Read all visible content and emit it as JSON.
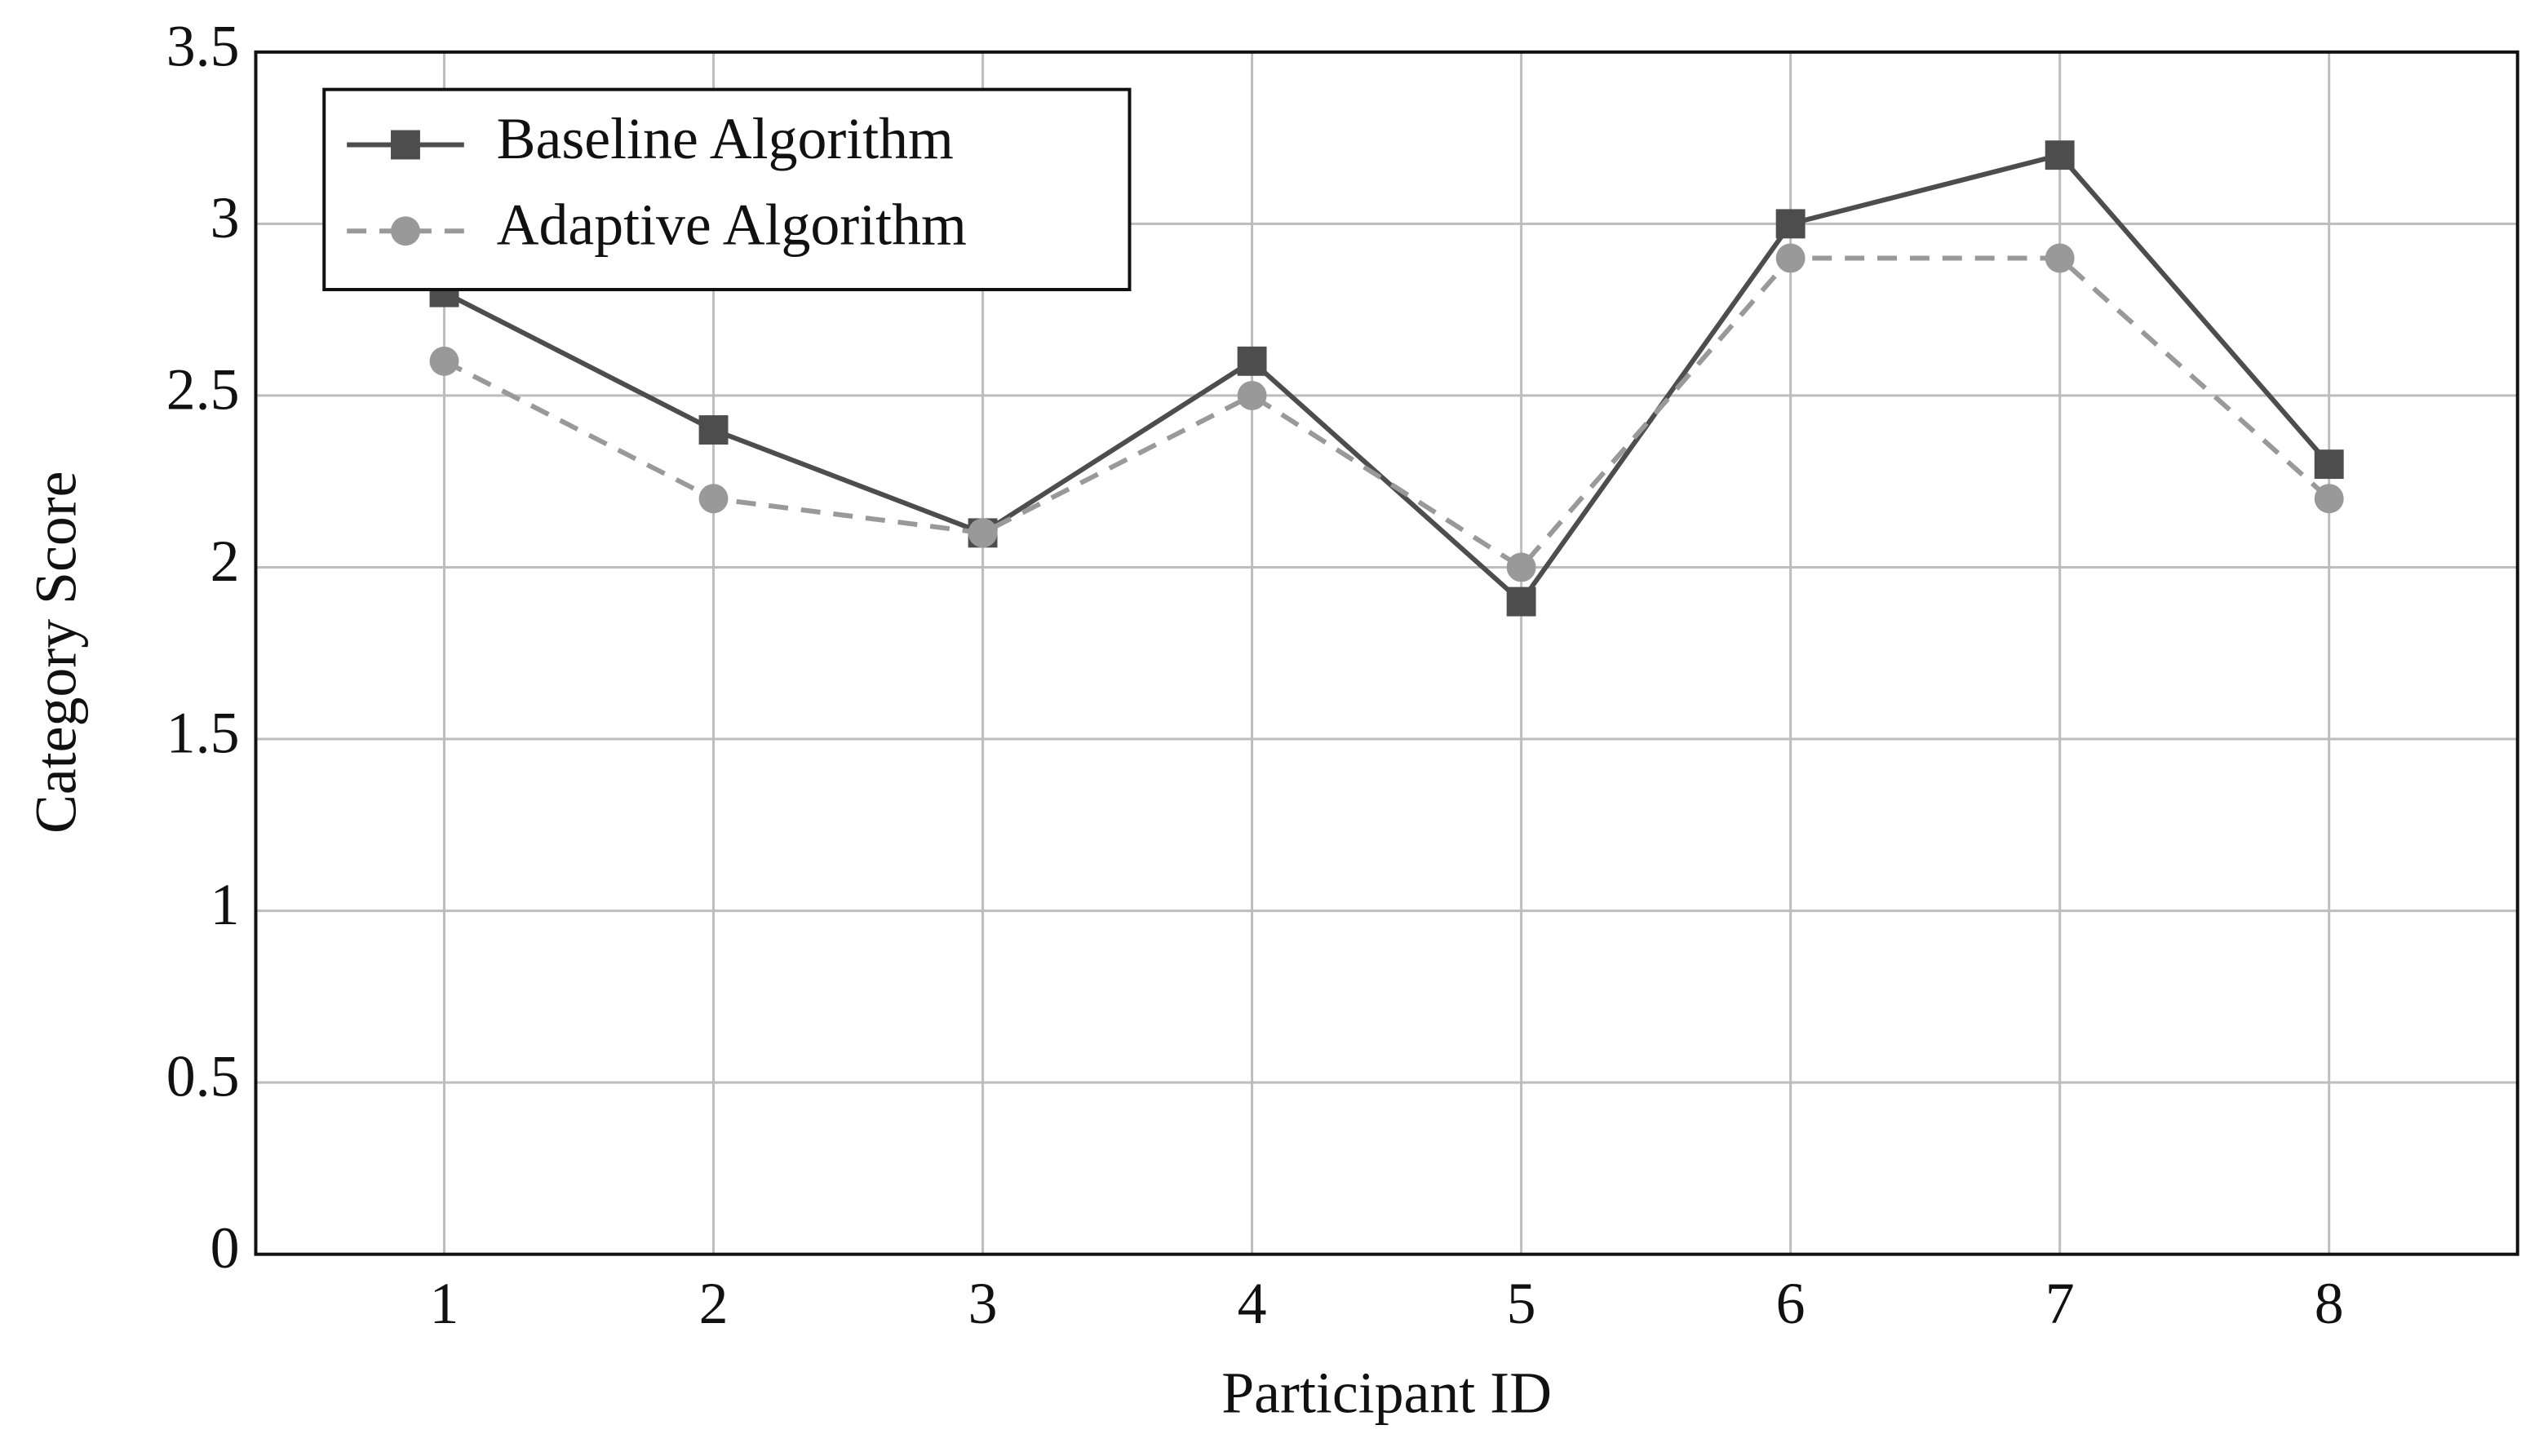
{
  "chart_data": {
    "type": "line",
    "x_label": "Participant ID",
    "y_label": "Category Score",
    "x": [
      1,
      2,
      3,
      4,
      5,
      6,
      7,
      8
    ],
    "series": [
      {
        "name": "Baseline Algorithm",
        "color": "#4d4d4d",
        "line_style": "solid",
        "marker": "square",
        "values": [
          2.8,
          2.4,
          2.1,
          2.6,
          1.9,
          3.0,
          3.2,
          2.3
        ]
      },
      {
        "name": "Adaptive Algorithm",
        "color": "#999999",
        "line_style": "dashed",
        "marker": "circle",
        "values": [
          2.6,
          2.2,
          2.1,
          2.5,
          2.0,
          2.9,
          2.9,
          2.2
        ]
      }
    ],
    "xlim": [
      0.3,
      8.7
    ],
    "xticks": [
      1,
      2,
      3,
      4,
      5,
      6,
      7,
      8
    ],
    "ylim": [
      0,
      3.5
    ],
    "yticks": [
      0,
      0.5,
      1,
      1.5,
      2,
      2.5,
      3,
      3.5
    ],
    "grid": true,
    "legend": "top-left"
  }
}
